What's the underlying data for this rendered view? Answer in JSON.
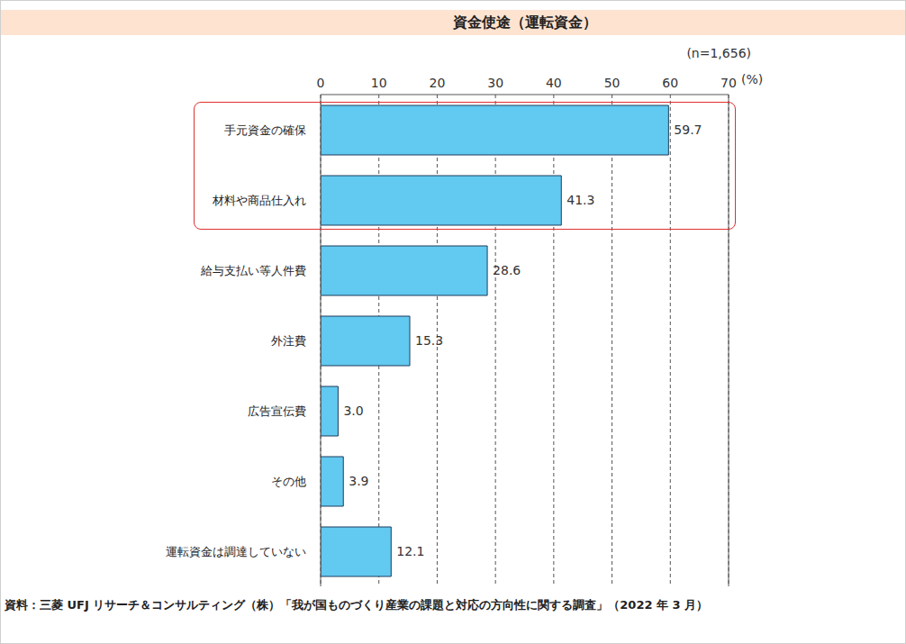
{
  "chart_data": {
    "type": "bar",
    "orientation": "horizontal",
    "title": "資金使途（運転資金）",
    "subtitle": "(n=1,656)",
    "xlabel": "(%)",
    "categories": [
      "手元資金の確保",
      "材料や商品仕入れ",
      "給与支払い等人件費",
      "外注費",
      "広告宣伝費",
      "その他",
      "運転資金は調達していない"
    ],
    "values": [
      59.7,
      41.3,
      28.6,
      15.3,
      3.0,
      3.9,
      12.1
    ],
    "value_labels": [
      "59.7",
      "41.3",
      "28.6",
      "15.3",
      "3.0",
      "3.9",
      "12.1"
    ],
    "color": "#62c9f0",
    "xlim": [
      0,
      70
    ],
    "xticks": [
      0,
      10,
      20,
      30,
      40,
      50,
      60,
      70
    ],
    "grid": true,
    "data_labels": true,
    "source": "資料：三菱 UFJ リサーチ＆コンサルティング（株）「我が国ものづくり産業の課題と対応の方向性に関する調査」（2022 年 3 月）"
  }
}
